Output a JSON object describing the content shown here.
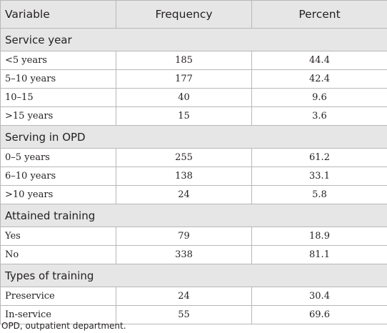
{
  "header": {
    "variable": "Variable",
    "frequency": "Frequency",
    "percent": "Percent"
  },
  "groups": [
    {
      "title": "Service year",
      "rows": [
        {
          "label": "<5 years",
          "frequency": "185",
          "percent": "44.4"
        },
        {
          "label": "5–10 years",
          "frequency": "177",
          "percent": "42.4"
        },
        {
          "label": "10–15",
          "frequency": "40",
          "percent": "9.6"
        },
        {
          "label": ">15 years",
          "frequency": "15",
          "percent": "3.6"
        }
      ]
    },
    {
      "title": "Serving in OPD",
      "rows": [
        {
          "label": "0–5 years",
          "frequency": "255",
          "percent": "61.2"
        },
        {
          "label": "6–10 years",
          "frequency": "138",
          "percent": "33.1"
        },
        {
          "label": ">10 years",
          "frequency": "24",
          "percent": "5.8"
        }
      ]
    },
    {
      "title": "Attained training",
      "rows": [
        {
          "label": "Yes",
          "frequency": "79",
          "percent": "18.9"
        },
        {
          "label": "No",
          "frequency": "338",
          "percent": "81.1"
        }
      ]
    },
    {
      "title": "Types of training",
      "rows": [
        {
          "label": "Preservice",
          "frequency": "24",
          "percent": "30.4"
        },
        {
          "label": "In-service",
          "frequency": "55",
          "percent": "69.6"
        }
      ]
    }
  ],
  "footnote": "OPD, outpatient department."
}
